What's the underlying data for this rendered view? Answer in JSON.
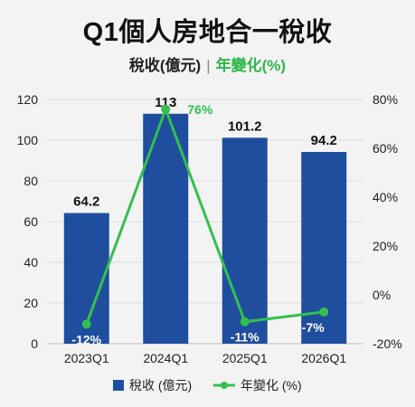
{
  "title": "Q1個人房地合一稅收",
  "subtitle": {
    "left": "稅收(億元)",
    "separator": "|",
    "right": "年變化(%)"
  },
  "colors": {
    "bar": "#1f4e9e",
    "line": "#33c04f",
    "grid": "#dcdcdc",
    "background": "#f3f3f3"
  },
  "chart_data": {
    "type": "bar",
    "categories": [
      "2023Q1",
      "2024Q1",
      "2025Q1",
      "2026Q1"
    ],
    "series": [
      {
        "name": "稅收 (億元)",
        "type": "bar",
        "axis": "left",
        "values": [
          64.2,
          113,
          101.2,
          94.2
        ],
        "labels": [
          "64.2",
          "113",
          "101.2",
          "94.2"
        ]
      },
      {
        "name": "年變化 (%)",
        "type": "line",
        "axis": "right",
        "values": [
          -12,
          76,
          -11,
          -7
        ],
        "labels": [
          "-12%",
          "76%",
          "-11%",
          "-7%"
        ]
      }
    ],
    "ylim_left": [
      0,
      120
    ],
    "yticks_left": [
      0,
      20,
      40,
      60,
      80,
      100,
      120
    ],
    "ylim_right": [
      -20,
      80
    ],
    "yticks_right": [
      "-20%",
      "0%",
      "20%",
      "40%",
      "60%",
      "80%"
    ],
    "yticks_right_values": [
      -20,
      0,
      20,
      40,
      60,
      80
    ],
    "grid": true,
    "legend": "bottom"
  }
}
